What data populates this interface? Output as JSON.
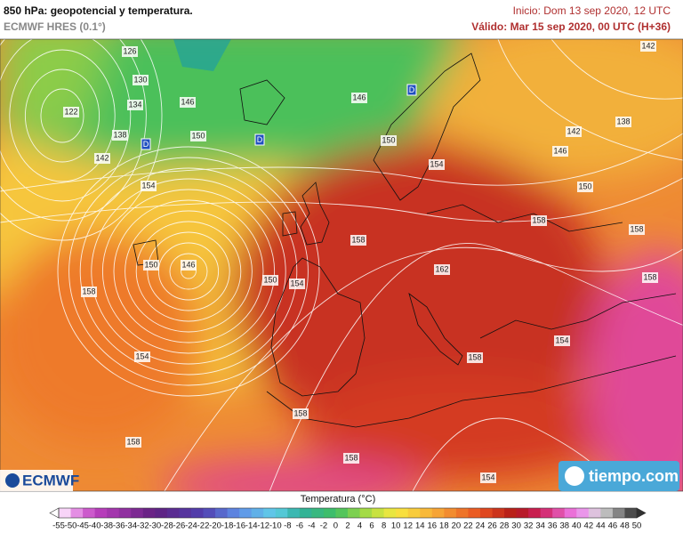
{
  "header": {
    "title": "850 hPa: geopotencial y temperatura.",
    "model": "ECMWF HRES (0.1°)",
    "init": "Inicio: Dom 13 sep 2020, 12 UTC",
    "valid": "Válido: Mar 15 sep 2020, 00 UTC (H+36)"
  },
  "map": {
    "contour_labels": [
      126,
      130,
      134,
      122,
      138,
      142,
      146,
      150,
      154,
      146,
      150,
      154,
      150,
      154,
      158,
      162,
      158,
      158,
      158,
      150,
      146,
      154,
      154,
      158,
      158,
      158,
      158,
      154,
      142,
      138,
      142,
      146,
      150,
      158
    ],
    "low_markers": [
      "D",
      "D",
      "D"
    ]
  },
  "logos": {
    "left": "ECMWF",
    "right": "tiempo.com"
  },
  "colorbar": {
    "label": "Temperatura (°C)",
    "ticks": [
      -55,
      -50,
      -45,
      -40,
      -38,
      -36,
      -34,
      -32,
      -30,
      -28,
      -26,
      -24,
      -22,
      -20,
      -18,
      -16,
      -14,
      -12,
      -10,
      -8,
      -6,
      -4,
      -2,
      0,
      2,
      4,
      6,
      8,
      10,
      12,
      14,
      16,
      18,
      20,
      22,
      24,
      26,
      28,
      30,
      32,
      34,
      36,
      38,
      40,
      42,
      44,
      46,
      48,
      50
    ]
  }
}
